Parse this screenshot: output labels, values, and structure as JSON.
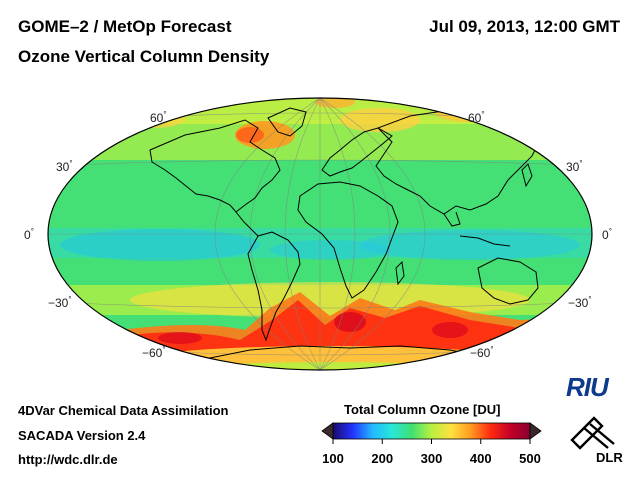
{
  "header": {
    "product": "GOME–2 / MetOp Forecast",
    "quantity": "Ozone Vertical Column Density",
    "datetime": "Jul 09, 2013, 12:00 GMT"
  },
  "map": {
    "projection": "Hammer-Aitoff (global)",
    "lat_labels_left": [
      "60",
      "30",
      "0",
      "−30",
      "−60"
    ],
    "lat_labels_right": [
      "60",
      "30",
      "0",
      "−30",
      "−60"
    ],
    "degree_symbol": "°"
  },
  "colorbar": {
    "title": "Total Column Ozone [DU]",
    "min": 100,
    "max": 500,
    "ticks": [
      "100",
      "200",
      "300",
      "400",
      "500"
    ],
    "colors": [
      "#1a0a6e",
      "#2233ff",
      "#22b8ff",
      "#28e8d8",
      "#40e070",
      "#b8f040",
      "#ffe040",
      "#ff9a20",
      "#ff2a10",
      "#c40028",
      "#8a0030"
    ]
  },
  "footer": {
    "line1": "4DVar Chemical Data Assimilation",
    "line2": "SACADA Version 2.4",
    "line3": "http://wdc.dlr.de"
  },
  "logos": {
    "riu": "RIU",
    "dlr": "DLR"
  }
}
